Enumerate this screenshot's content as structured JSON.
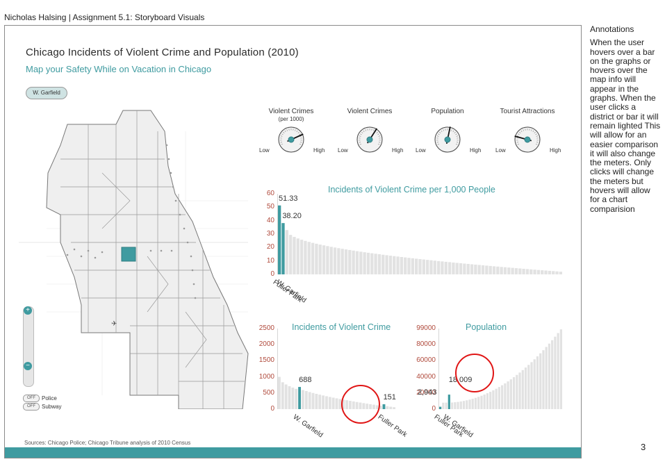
{
  "doc_header": "Nicholas Halsing | Assignment 5.1: Storyboard Visuals",
  "title": "Chicago Incidents of Violent Crime and Population (2010)",
  "subtitle": "Map your Safety While on Vacation in Chicago",
  "selected_district": "W. Garfield",
  "sources": "Sources: Chicago Police; Chicago Tribune analysis of 2010 Census",
  "map_controls": {
    "zoom_in": "+",
    "zoom_out": "−",
    "toggles": [
      {
        "state": "OFF",
        "label": "Police"
      },
      {
        "state": "OFF",
        "label": "Subway"
      }
    ]
  },
  "gauges": [
    {
      "label": "Violent Crimes",
      "sublabel": "(per 1000)",
      "low": "Low",
      "high": "High",
      "level": 0.78
    },
    {
      "label": "Violent Crimes",
      "sublabel": "",
      "low": "Low",
      "high": "High",
      "level": 0.64
    },
    {
      "label": "Population",
      "sublabel": "",
      "low": "Low",
      "high": "High",
      "level": 0.55
    },
    {
      "label": "Tourist Attractions",
      "sublabel": "",
      "low": "Low",
      "high": "High",
      "level": 0.18
    }
  ],
  "chart_data": [
    {
      "type": "bar",
      "title": "Incidents of Violent Crime per 1,000 People",
      "yticks": [
        "60",
        "50",
        "40",
        "30",
        "20",
        "10",
        "0"
      ],
      "ylim": [
        0,
        60
      ],
      "highlighted": [
        {
          "category": "Fuller Park",
          "value": 51.33,
          "label": "51.33"
        },
        {
          "category": "W. Garfield",
          "value": 38.2,
          "label": "38.20"
        }
      ],
      "category_labels": [
        "Fuller Park",
        "W. Garfield"
      ],
      "other_bars_from": 33,
      "other_bars_to": 2,
      "other_bar_count": 75,
      "highlight_color": "#3f9ba0",
      "bar_color": "#e2e2e2"
    },
    {
      "type": "bar",
      "title": "Incidents of Violent Crime",
      "yticks": [
        "2500",
        "2000",
        "1500",
        "1000",
        "500",
        "0"
      ],
      "ylim": [
        0,
        2500
      ],
      "highlighted": [
        {
          "category": "W. Garfield",
          "value": 688,
          "label": "688",
          "index": 6
        },
        {
          "category": "Fuller Park",
          "value": 151,
          "label": "151",
          "index": 31
        }
      ],
      "category_labels": [
        "W. Garfield",
        "Fuller Park"
      ],
      "other_bars_from": 1000,
      "other_bars_to": 60,
      "other_bar_count": 33,
      "highlight_color": "#3f9ba0",
      "bar_color": "#e2e2e2"
    },
    {
      "type": "bar",
      "title": "Population",
      "yticks": [
        "99000",
        "80000",
        "60000",
        "40000",
        "20000",
        "0"
      ],
      "ylim": [
        0,
        100000
      ],
      "highlighted": [
        {
          "category": "Fuller Park",
          "value": 2943,
          "label": "2,943",
          "index": 0
        },
        {
          "category": "W. Garfield",
          "value": 18009,
          "label": "18,009",
          "index": 3
        }
      ],
      "category_labels": [
        "Fuller Park",
        "W. Garfield"
      ],
      "other_bars_from": 8000,
      "other_bars_to": 99000,
      "other_bar_count": 40,
      "highlight_color": "#3f9ba0",
      "bar_color": "#e2e2e2"
    }
  ],
  "annotations": {
    "title": "Annotations",
    "body": "When the user hovers over a bar on the graphs or hovers over the map info will appear in the graphs. When the user clicks a district or bar it will remain lighted This will allow for an easier comparison it will also change the meters. Only clicks will change the meters but hovers will allow for a chart comparision"
  },
  "page_number": "3"
}
